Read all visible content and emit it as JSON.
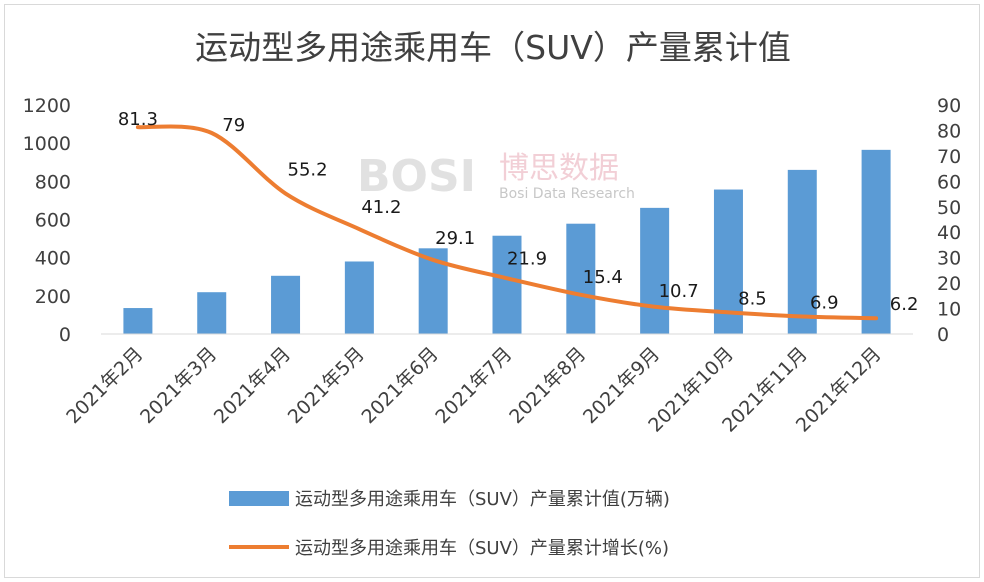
{
  "chart_data": {
    "type": "bar",
    "title": "运动型多用途乘用车（SUV）产量累计值",
    "categories": [
      "2021年2月",
      "2021年3月",
      "2021年4月",
      "2021年5月",
      "2021年6月",
      "2021年7月",
      "2021年8月",
      "2021年9月",
      "2021年10月",
      "2021年11月",
      "2021年12月"
    ],
    "series": [
      {
        "name": "运动型多用途乘用车（SUV）产量累计值(万辆)",
        "type": "bar",
        "axis": "left",
        "color": "#5b9bd5",
        "values": [
          136,
          219,
          305,
          380,
          449,
          515,
          578,
          661,
          757,
          860,
          965
        ]
      },
      {
        "name": "运动型多用途乘用车（SUV）产量累计增长(%)",
        "type": "line",
        "axis": "right",
        "color": "#ed7d31",
        "values": [
          81.3,
          79,
          55.2,
          41.2,
          29.1,
          21.9,
          15.4,
          10.7,
          8.5,
          6.9,
          6.2
        ],
        "labels": [
          "81.3",
          "79",
          "55.2",
          "41.2",
          "29.1",
          "21.9",
          "15.4",
          "10.7",
          "8.5",
          "6.9",
          "6.2"
        ]
      }
    ],
    "y_left": {
      "min": 0,
      "max": 1200,
      "ticks": [
        "0",
        "200",
        "400",
        "600",
        "800",
        "1000",
        "1200"
      ]
    },
    "y_right": {
      "min": 0,
      "max": 90,
      "ticks": [
        "0",
        "10",
        "20",
        "30",
        "40",
        "50",
        "60",
        "70",
        "80",
        "90"
      ]
    },
    "grid": false,
    "legend_position": "bottom"
  },
  "watermark": {
    "logo": "BOSI",
    "cn": "博思数据",
    "en": "Bosi Data Research"
  }
}
